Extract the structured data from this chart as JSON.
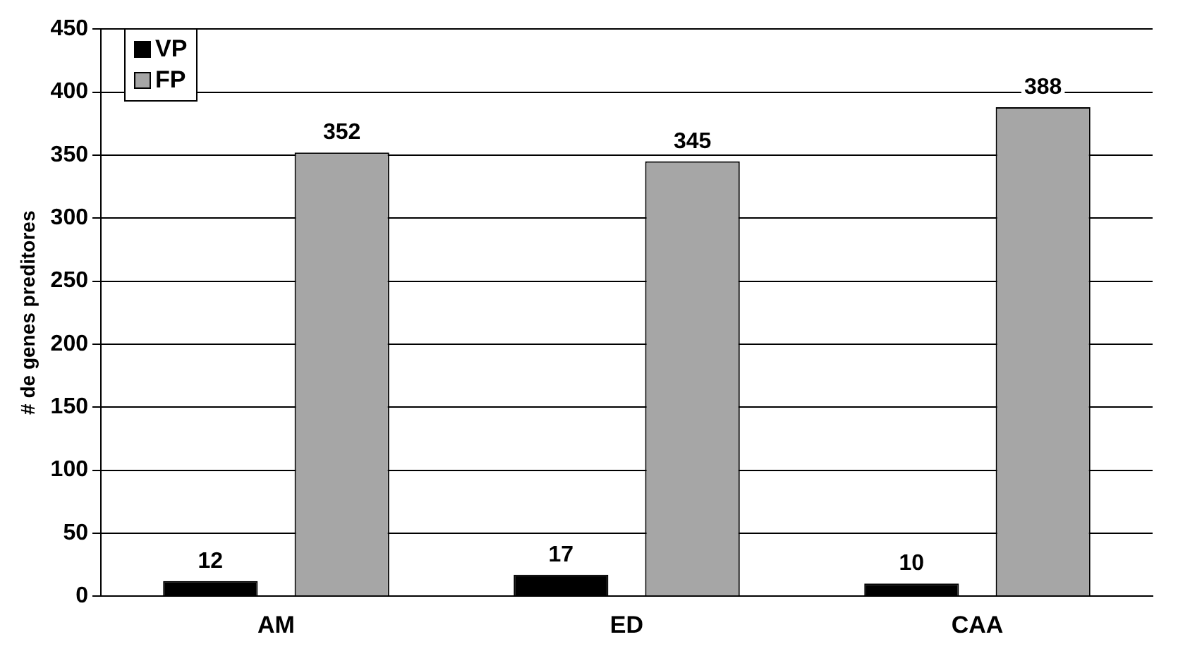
{
  "chart_data": {
    "type": "bar",
    "ylabel": "# de genes preditores",
    "categories": [
      "AM",
      "ED",
      "CAA"
    ],
    "series": [
      {
        "name": "VP",
        "color": "#000000",
        "values": [
          12,
          17,
          10
        ]
      },
      {
        "name": "FP",
        "color": "#a6a6a6",
        "values": [
          352,
          345,
          388
        ]
      }
    ],
    "ylim": [
      0,
      450
    ],
    "yticks": [
      0,
      50,
      100,
      150,
      200,
      250,
      300,
      350,
      400,
      450
    ],
    "grid": "y",
    "legend": "top left",
    "data_labels": true
  }
}
